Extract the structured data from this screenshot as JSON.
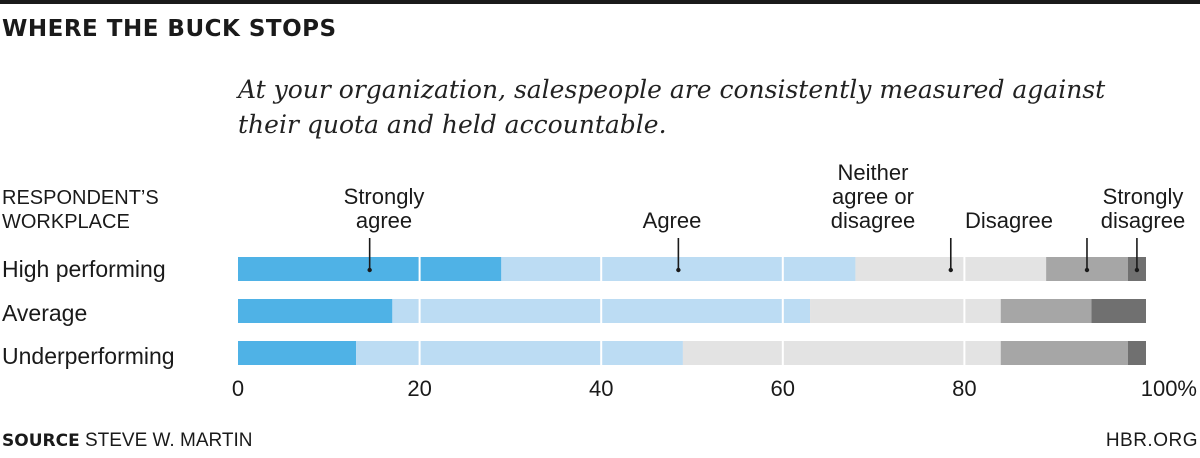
{
  "header": {
    "title": "WHERE THE BUCK STOPS",
    "subtitle": "At your organization, salespeople are consistently measured against their quota and held accountable."
  },
  "legend_heading": "RESPONDENT’S\nWORKPLACE",
  "footer": {
    "source_label": "SOURCE",
    "source_text": "STEVE W. MARTIN",
    "brand": "HBR.ORG"
  },
  "colors": {
    "strongly_agree": "#4fb2e6",
    "agree": "#bcdcf3",
    "neither": "#e3e3e3",
    "disagree": "#a6a6a6",
    "strongly_disagree": "#707070",
    "text": "#1a1a1a"
  },
  "chart_data": {
    "type": "bar",
    "stacked": true,
    "orientation": "horizontal",
    "categories": [
      "High performing",
      "Average",
      "Underperforming"
    ],
    "series": [
      {
        "name": "Strongly agree",
        "values": [
          29,
          17,
          13
        ]
      },
      {
        "name": "Agree",
        "values": [
          39,
          46,
          36
        ]
      },
      {
        "name": "Neither agree or disagree",
        "values": [
          21,
          21,
          35
        ]
      },
      {
        "name": "Disagree",
        "values": [
          9,
          10,
          14
        ]
      },
      {
        "name": "Strongly disagree",
        "values": [
          2,
          6,
          2
        ]
      }
    ],
    "xlim": [
      0,
      100
    ],
    "x_ticks": [
      "0",
      "20",
      "40",
      "60",
      "80",
      "100%"
    ],
    "legend_labels": [
      "Strongly\nagree",
      "Agree",
      "Neither\nagree or\ndisagree",
      "Disagree",
      "Strongly\ndisagree"
    ],
    "grid": true
  }
}
